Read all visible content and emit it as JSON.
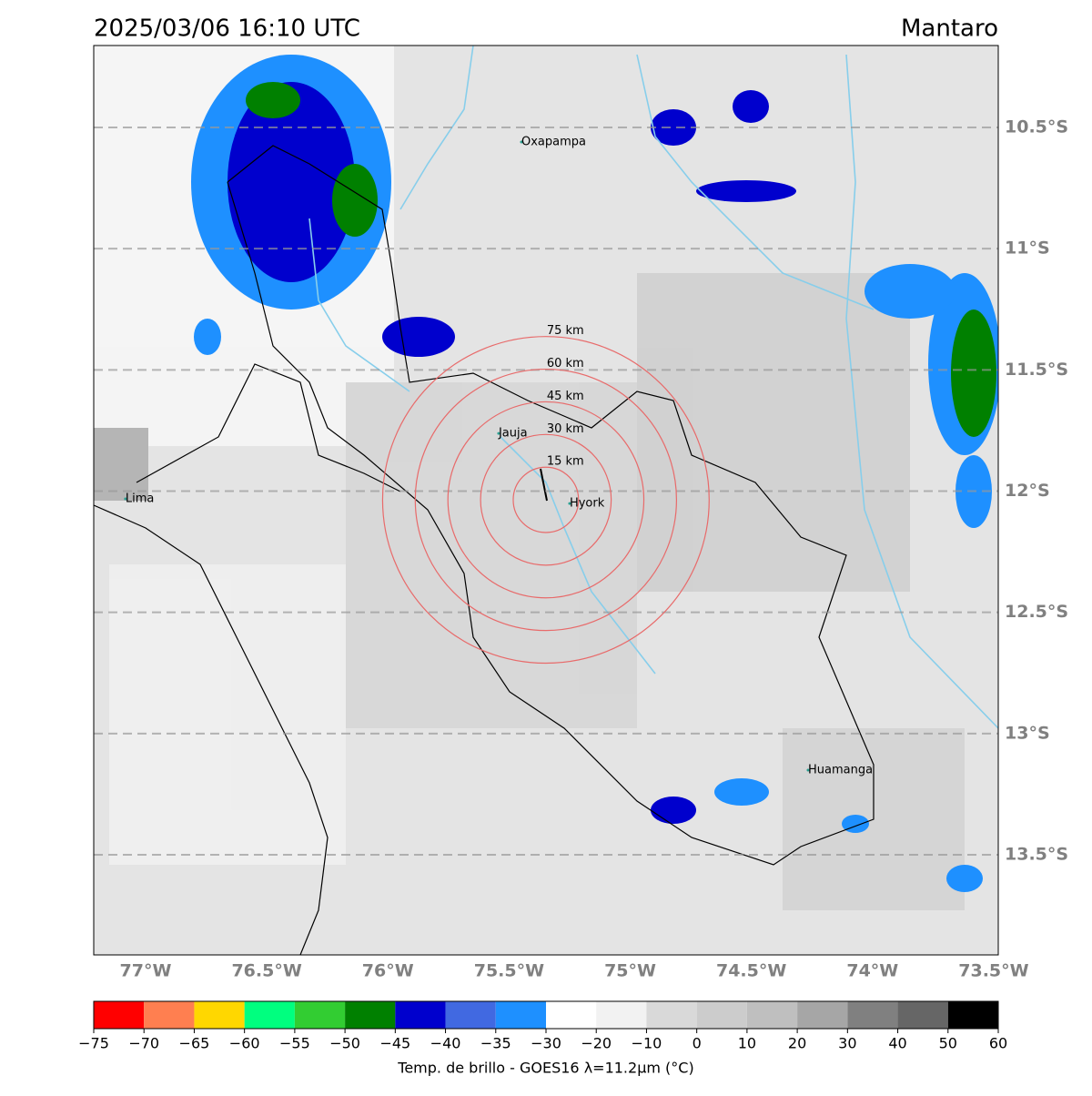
{
  "header": {
    "title": "2025/03/06 16:10 UTC",
    "location": "Mantaro"
  },
  "map": {
    "lon_range": [
      -77.214,
      -73.481
    ],
    "lat_range": [
      -13.913,
      -10.162
    ],
    "lat_ticks": [
      {
        "value": -10.5,
        "label": "10.5°S"
      },
      {
        "value": -11,
        "label": "11°S"
      },
      {
        "value": -11.5,
        "label": "11.5°S"
      },
      {
        "value": -12,
        "label": "12°S"
      },
      {
        "value": -12.5,
        "label": "12.5°S"
      },
      {
        "value": -13,
        "label": "13°S"
      },
      {
        "value": -13.5,
        "label": "13.5°S"
      }
    ],
    "lon_ticks": [
      {
        "value": -77,
        "label": "77°W"
      },
      {
        "value": -76.5,
        "label": "76.5°W"
      },
      {
        "value": -76,
        "label": "76°W"
      },
      {
        "value": -75.5,
        "label": "75.5°W"
      },
      {
        "value": -75,
        "label": "75°W"
      },
      {
        "value": -74.5,
        "label": "74.5°W"
      },
      {
        "value": -74,
        "label": "74°W"
      },
      {
        "value": -73.5,
        "label": "73.5°W"
      }
    ],
    "places": [
      {
        "name": "Oxapampa",
        "lon": -75.449,
        "lat": -10.56
      },
      {
        "name": "Jauja",
        "lon": -75.543,
        "lat": -11.762
      },
      {
        "name": "Lima",
        "lon": -77.083,
        "lat": -12.032
      },
      {
        "name": "Hyork",
        "lon": -75.25,
        "lat": -12.051
      },
      {
        "name": "Huamanga",
        "lon": -74.266,
        "lat": -13.151
      }
    ],
    "rings": {
      "center_lon": -75.348,
      "center_lat": -12.036,
      "color": "#e86a6a",
      "radii_km": [
        15,
        30,
        45,
        60,
        75
      ],
      "value_labels": [
        "15 km",
        "30 km",
        "45 km",
        "60 km",
        "75 km"
      ]
    }
  },
  "colorbar": {
    "label": "Temp. de brillo - GOES16 λ=11.2μm (°C)",
    "ticks": [
      {
        "value": -75,
        "label": "−75"
      },
      {
        "value": -70,
        "label": "−70"
      },
      {
        "value": -65,
        "label": "−65"
      },
      {
        "value": -60,
        "label": "−60"
      },
      {
        "value": -55,
        "label": "−55"
      },
      {
        "value": -50,
        "label": "−50"
      },
      {
        "value": -45,
        "label": "−45"
      },
      {
        "value": -40,
        "label": "−40"
      },
      {
        "value": -35,
        "label": "−35"
      },
      {
        "value": -30,
        "label": "−30"
      },
      {
        "value": -20,
        "label": "−20"
      },
      {
        "value": -10,
        "label": "−10"
      },
      0,
      10,
      20,
      30,
      40,
      50,
      60
    ],
    "colors": [
      "#ff0000",
      "#ff7f50",
      "#ffd700",
      "#00ff7f",
      "#32cd32",
      "#008000",
      "#0000cd",
      "#4169e1",
      "#1e90ff",
      "#ffffff",
      "#f2f2f2",
      "#d9d9d9",
      "#cccccc",
      "#bfbfbf",
      "#a6a6a6",
      "#808080",
      "#666666",
      "#000000"
    ]
  }
}
